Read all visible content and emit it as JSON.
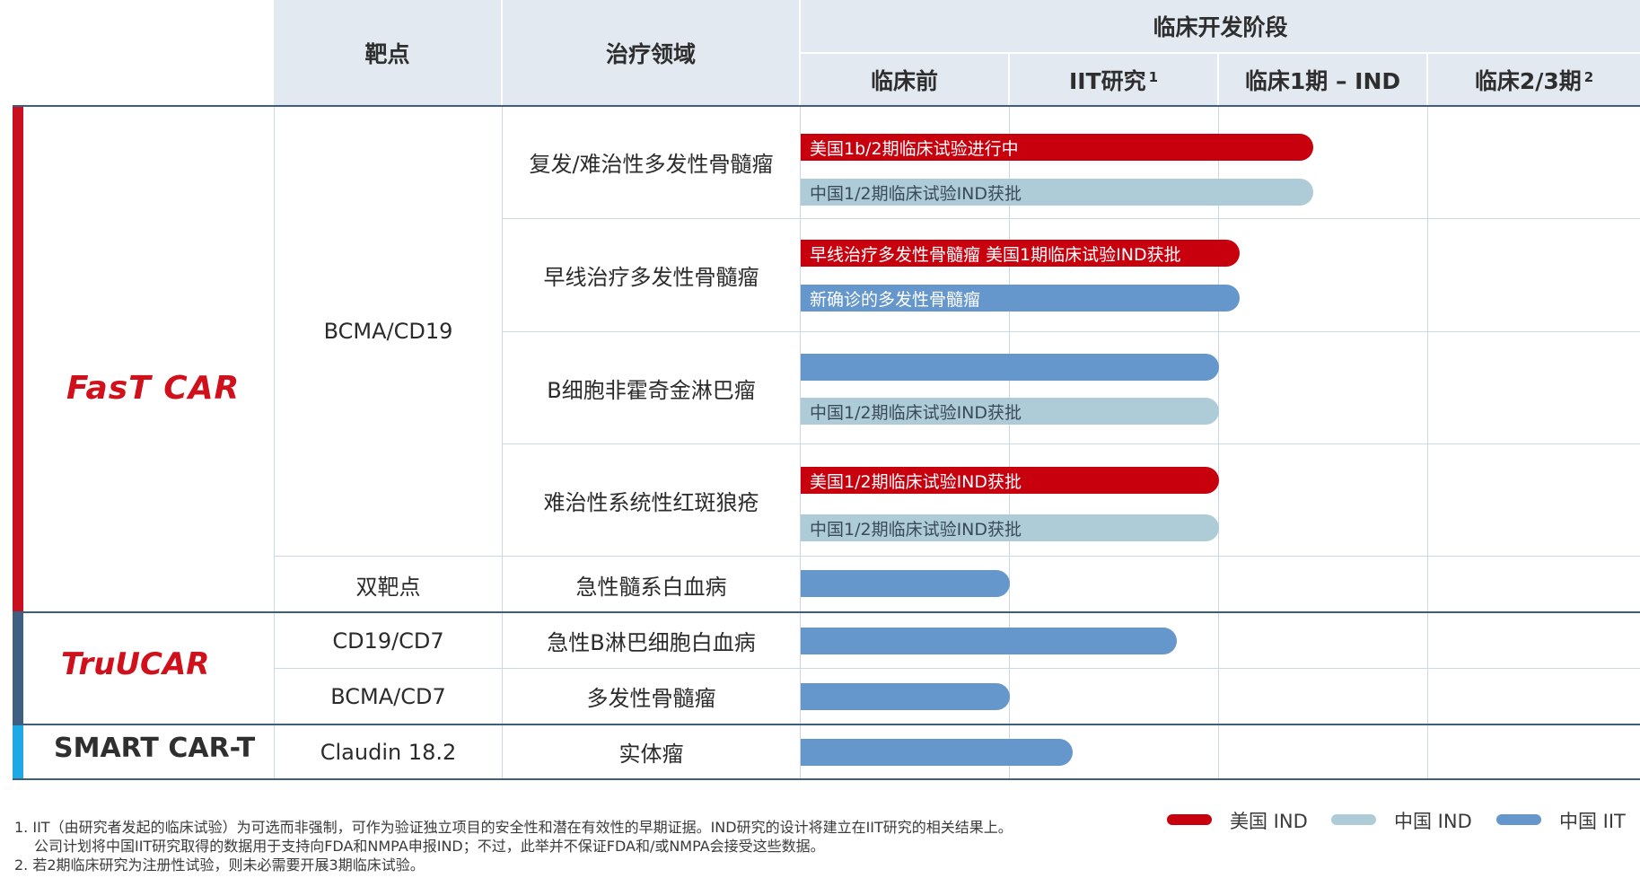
{
  "header": {
    "target": "靶点",
    "area": "治疗领域",
    "stage": "临床开发阶段",
    "phases": [
      {
        "label": "临床前",
        "sup": ""
      },
      {
        "label": "IIT研究",
        "sup": "1"
      },
      {
        "label": "临床1期 – IND",
        "sup": ""
      },
      {
        "label": "临床2/3期",
        "sup": "2"
      }
    ]
  },
  "platforms": {
    "fastcar": "FasT CAR",
    "trucar": "TruUCAR",
    "smart": "SMART CAR-T"
  },
  "colors": {
    "us_ind": "#c8000e",
    "cn_ind": "#aecbd8",
    "cn_iit": "#6597cc",
    "fastcar_strip": "#c8101e",
    "trucar_strip": "#3e5f80",
    "smart_strip": "#1fa8e6"
  },
  "rows": {
    "targets": [
      "BCMA/CD19",
      "双靶点",
      "CD19/CD7",
      "BCMA/CD7",
      "Claudin 18.2"
    ],
    "areas": [
      "复发/难治性多发性骨髓瘤",
      "早线治疗多发性骨髓瘤",
      "B细胞非霍奇金淋巴瘤",
      "难治性系统性红斑狼疮",
      "急性髓系白血病",
      "急性B淋巴细胞白血病",
      "多发性骨髓瘤",
      "实体瘤"
    ]
  },
  "chart_data": {
    "type": "bar",
    "phases": [
      "临床前",
      "IIT研究",
      "临床1期 – IND",
      "临床2/3期"
    ],
    "phase_range": [
      0,
      4
    ],
    "bars": [
      {
        "area": "复发/难治性多发性骨髓瘤",
        "series": "us_ind",
        "label": "美国1b/2期临床试验进行中",
        "end": 2.45
      },
      {
        "area": "复发/难治性多发性骨髓瘤",
        "series": "cn_ind",
        "label": "中国1/2期临床试验IND获批",
        "end": 2.45
      },
      {
        "area": "早线治疗多发性骨髓瘤",
        "series": "us_ind",
        "label": "早线治疗多发性骨髓瘤 美国1期临床试验IND获批",
        "end": 2.1
      },
      {
        "area": "早线治疗多发性骨髓瘤",
        "series": "cn_iit",
        "label": "新确诊的多发性骨髓瘤",
        "end": 2.1
      },
      {
        "area": "B细胞非霍奇金淋巴瘤",
        "series": "cn_iit",
        "label": "",
        "end": 2.0
      },
      {
        "area": "B细胞非霍奇金淋巴瘤",
        "series": "cn_ind",
        "label": "中国1/2期临床试验IND获批",
        "end": 2.0
      },
      {
        "area": "难治性系统性红斑狼疮",
        "series": "us_ind",
        "label": "美国1/2期临床试验IND获批",
        "end": 2.0
      },
      {
        "area": "难治性系统性红斑狼疮",
        "series": "cn_ind",
        "label": "中国1/2期临床试验IND获批",
        "end": 2.0
      },
      {
        "area": "急性髓系白血病",
        "series": "cn_iit",
        "label": "",
        "end": 1.0
      },
      {
        "area": "急性B淋巴细胞白血病",
        "series": "cn_iit",
        "label": "",
        "end": 1.8
      },
      {
        "area": "多发性骨髓瘤",
        "series": "cn_iit",
        "label": "",
        "end": 1.0
      },
      {
        "area": "实体瘤",
        "series": "cn_iit",
        "label": "",
        "end": 1.3
      }
    ],
    "legend": [
      {
        "key": "us_ind",
        "label": "美国 IND"
      },
      {
        "key": "cn_ind",
        "label": "中国 IND"
      },
      {
        "key": "cn_iit",
        "label": "中国 IIT"
      }
    ]
  },
  "footnotes": [
    "1. IIT（由研究者发起的临床试验）为可选而非强制，可作为验证独立项目的安全性和潜在有效性的早期证据。IND研究的设计将建立在IIT研究的相关结果上。",
    "公司计划将中国IIT研究取得的数据用于支持向FDA和NMPA申报IND；不过，此举并不保证FDA和/或NMPA会接受这些数据。",
    "2. 若2期临床研究为注册性试验，则未必需要开展3期临床试验。"
  ]
}
